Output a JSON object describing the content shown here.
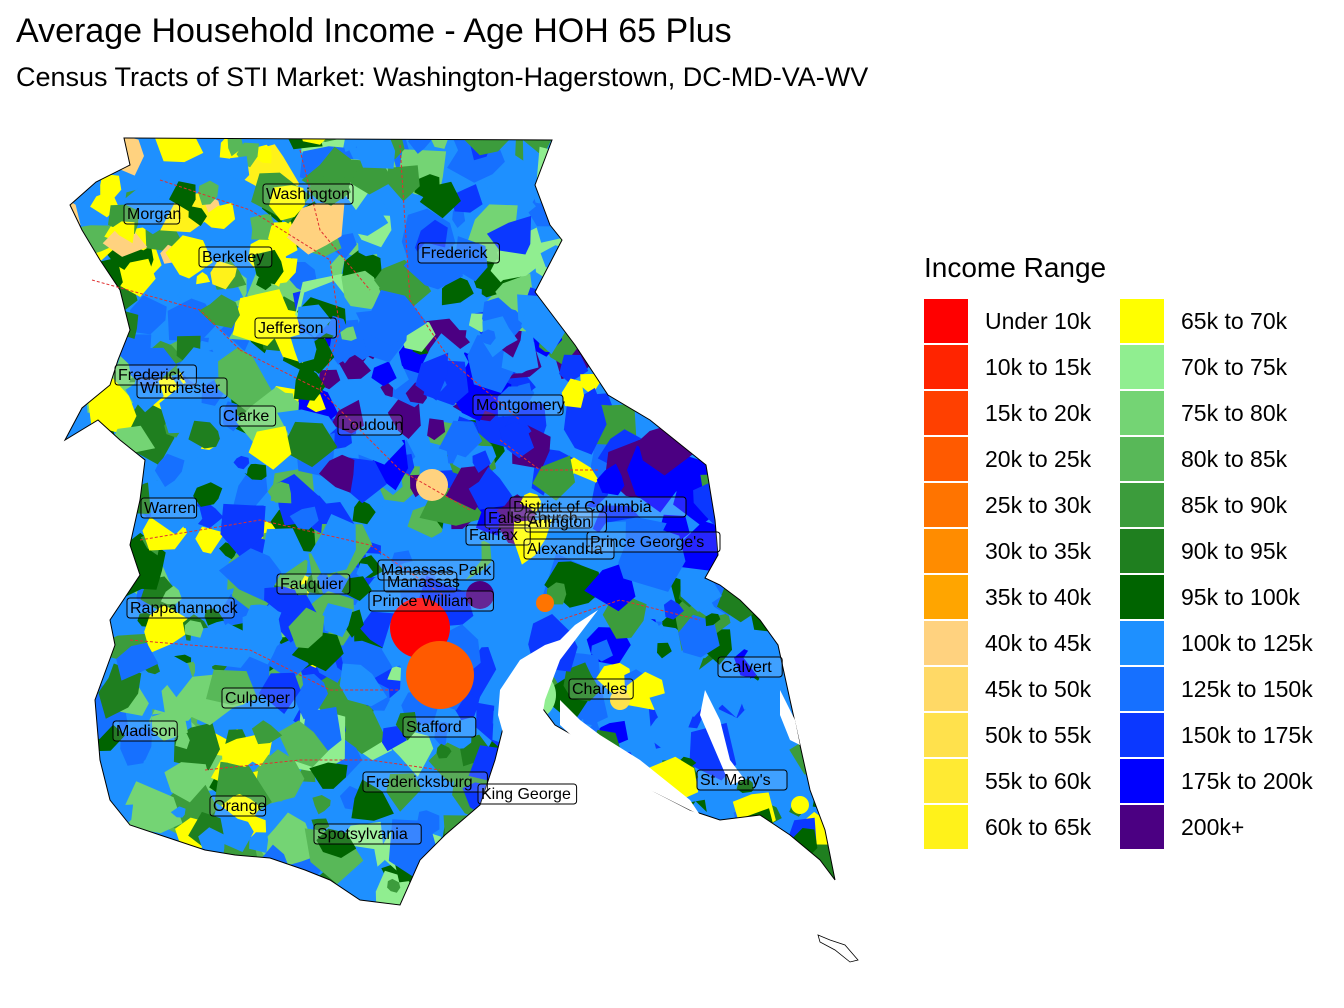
{
  "title": "Average Household Income - Age HOH 65 Plus",
  "subtitle": "Census Tracts of STI Market: Washington-Hagerstown, DC-MD-VA-WV",
  "legend": {
    "title": "Income Range",
    "items": [
      {
        "label": "Under 10k",
        "color": "#ff0000"
      },
      {
        "label": "10k to 15k",
        "color": "#ff2400"
      },
      {
        "label": "15k to 20k",
        "color": "#ff4000"
      },
      {
        "label": "20k to 25k",
        "color": "#ff5a00"
      },
      {
        "label": "25k to 30k",
        "color": "#ff7400"
      },
      {
        "label": "30k to 35k",
        "color": "#ff8c00"
      },
      {
        "label": "35k to 40k",
        "color": "#ffa500"
      },
      {
        "label": "40k to 45k",
        "color": "#ffd27f"
      },
      {
        "label": "45k to 50k",
        "color": "#ffd966"
      },
      {
        "label": "50k to 55k",
        "color": "#ffe14c"
      },
      {
        "label": "55k to 60k",
        "color": "#ffea33"
      },
      {
        "label": "60k to 65k",
        "color": "#fff21a"
      },
      {
        "label": "65k to 70k",
        "color": "#ffff00"
      },
      {
        "label": "70k to 75k",
        "color": "#90ee90"
      },
      {
        "label": "75k to 80k",
        "color": "#74d474"
      },
      {
        "label": "80k to 85k",
        "color": "#58b858"
      },
      {
        "label": "85k to 90k",
        "color": "#3c9c3c"
      },
      {
        "label": "90k to 95k",
        "color": "#1f7f1f"
      },
      {
        "label": "95k to 100k",
        "color": "#006400"
      },
      {
        "label": "100k to 125k",
        "color": "#1e90ff"
      },
      {
        "label": "125k to 150k",
        "color": "#1670ff"
      },
      {
        "label": "150k to 175k",
        "color": "#0b38ff"
      },
      {
        "label": "175k to 200k",
        "color": "#0000ff"
      },
      {
        "label": "200k+",
        "color": "#4b0082"
      }
    ]
  },
  "counties": [
    "Washington",
    "Morgan",
    "Berkeley",
    "Frederick",
    "Jefferson",
    "Frederick",
    "Winchester",
    "Clarke",
    "Loudoun",
    "Montgomery",
    "Warren",
    "District of Columbia",
    "Falls Church",
    "Arlington",
    "Fairfax",
    "Alexandria",
    "Prince George's",
    "Manassas Park",
    "Manassas",
    "Fauquier",
    "Prince William",
    "Rappahannock",
    "Calvert",
    "Charles",
    "Culpeper",
    "Stafford",
    "Madison",
    "Fredericksburg",
    "King George",
    "St. Mary's",
    "Orange",
    "Spotsylvania"
  ]
}
